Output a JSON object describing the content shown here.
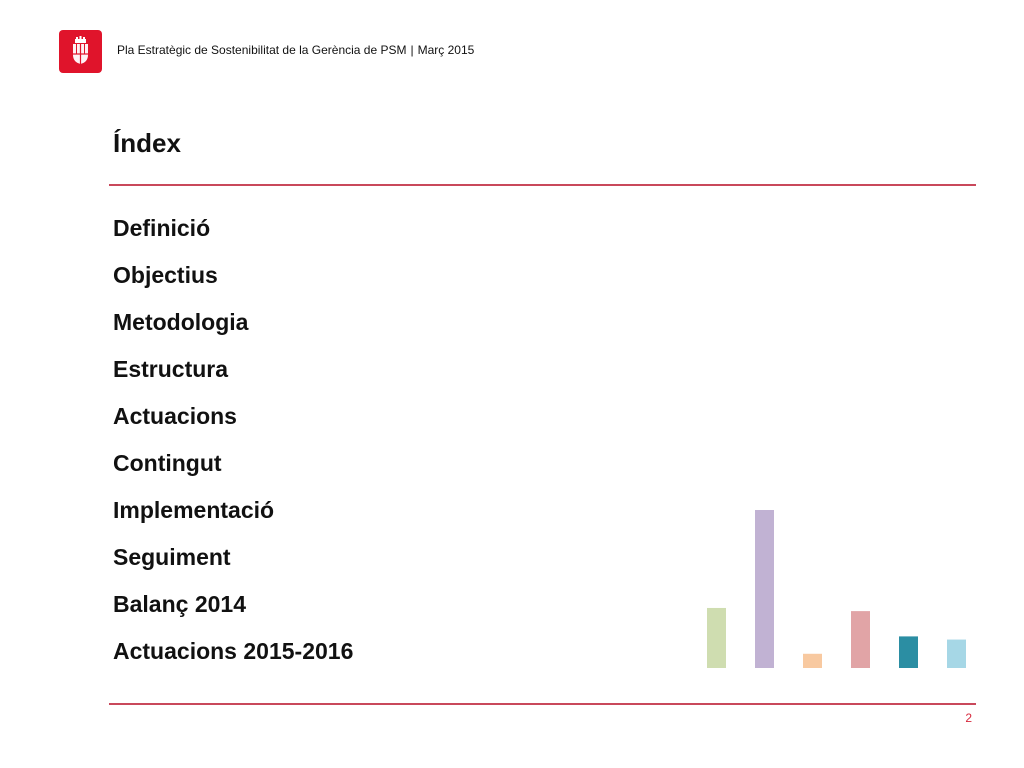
{
  "header": {
    "document_title": "Pla Estratègic de Sostenibilitat de la Gerència de PSM",
    "separator": "|",
    "date": "Març 2015"
  },
  "logo": {
    "icon": "barcelona-coat-of-arms-icon",
    "color": "#e0142b"
  },
  "slide": {
    "title": "Índex",
    "items": [
      "Definició",
      "Objectius",
      "Metodologia",
      "Estructura",
      "Actuacions",
      "Contingut",
      "Implementació",
      "Seguiment",
      "Balanç 2014",
      "Actuacions 2015-2016"
    ],
    "page_number": "2"
  },
  "decoration": {
    "bars": [
      {
        "value": 0.38,
        "color": "#cfddb0"
      },
      {
        "value": 1.0,
        "color": "#c1b2d3"
      },
      {
        "value": 0.09,
        "color": "#f8c9a0"
      },
      {
        "value": 0.36,
        "color": "#e1a4a6"
      },
      {
        "value": 0.2,
        "color": "#2b8ea3"
      },
      {
        "value": 0.18,
        "color": "#a6d7e6"
      }
    ]
  },
  "colors": {
    "accent_rule": "#c9485b",
    "page_number": "#d6283c"
  }
}
